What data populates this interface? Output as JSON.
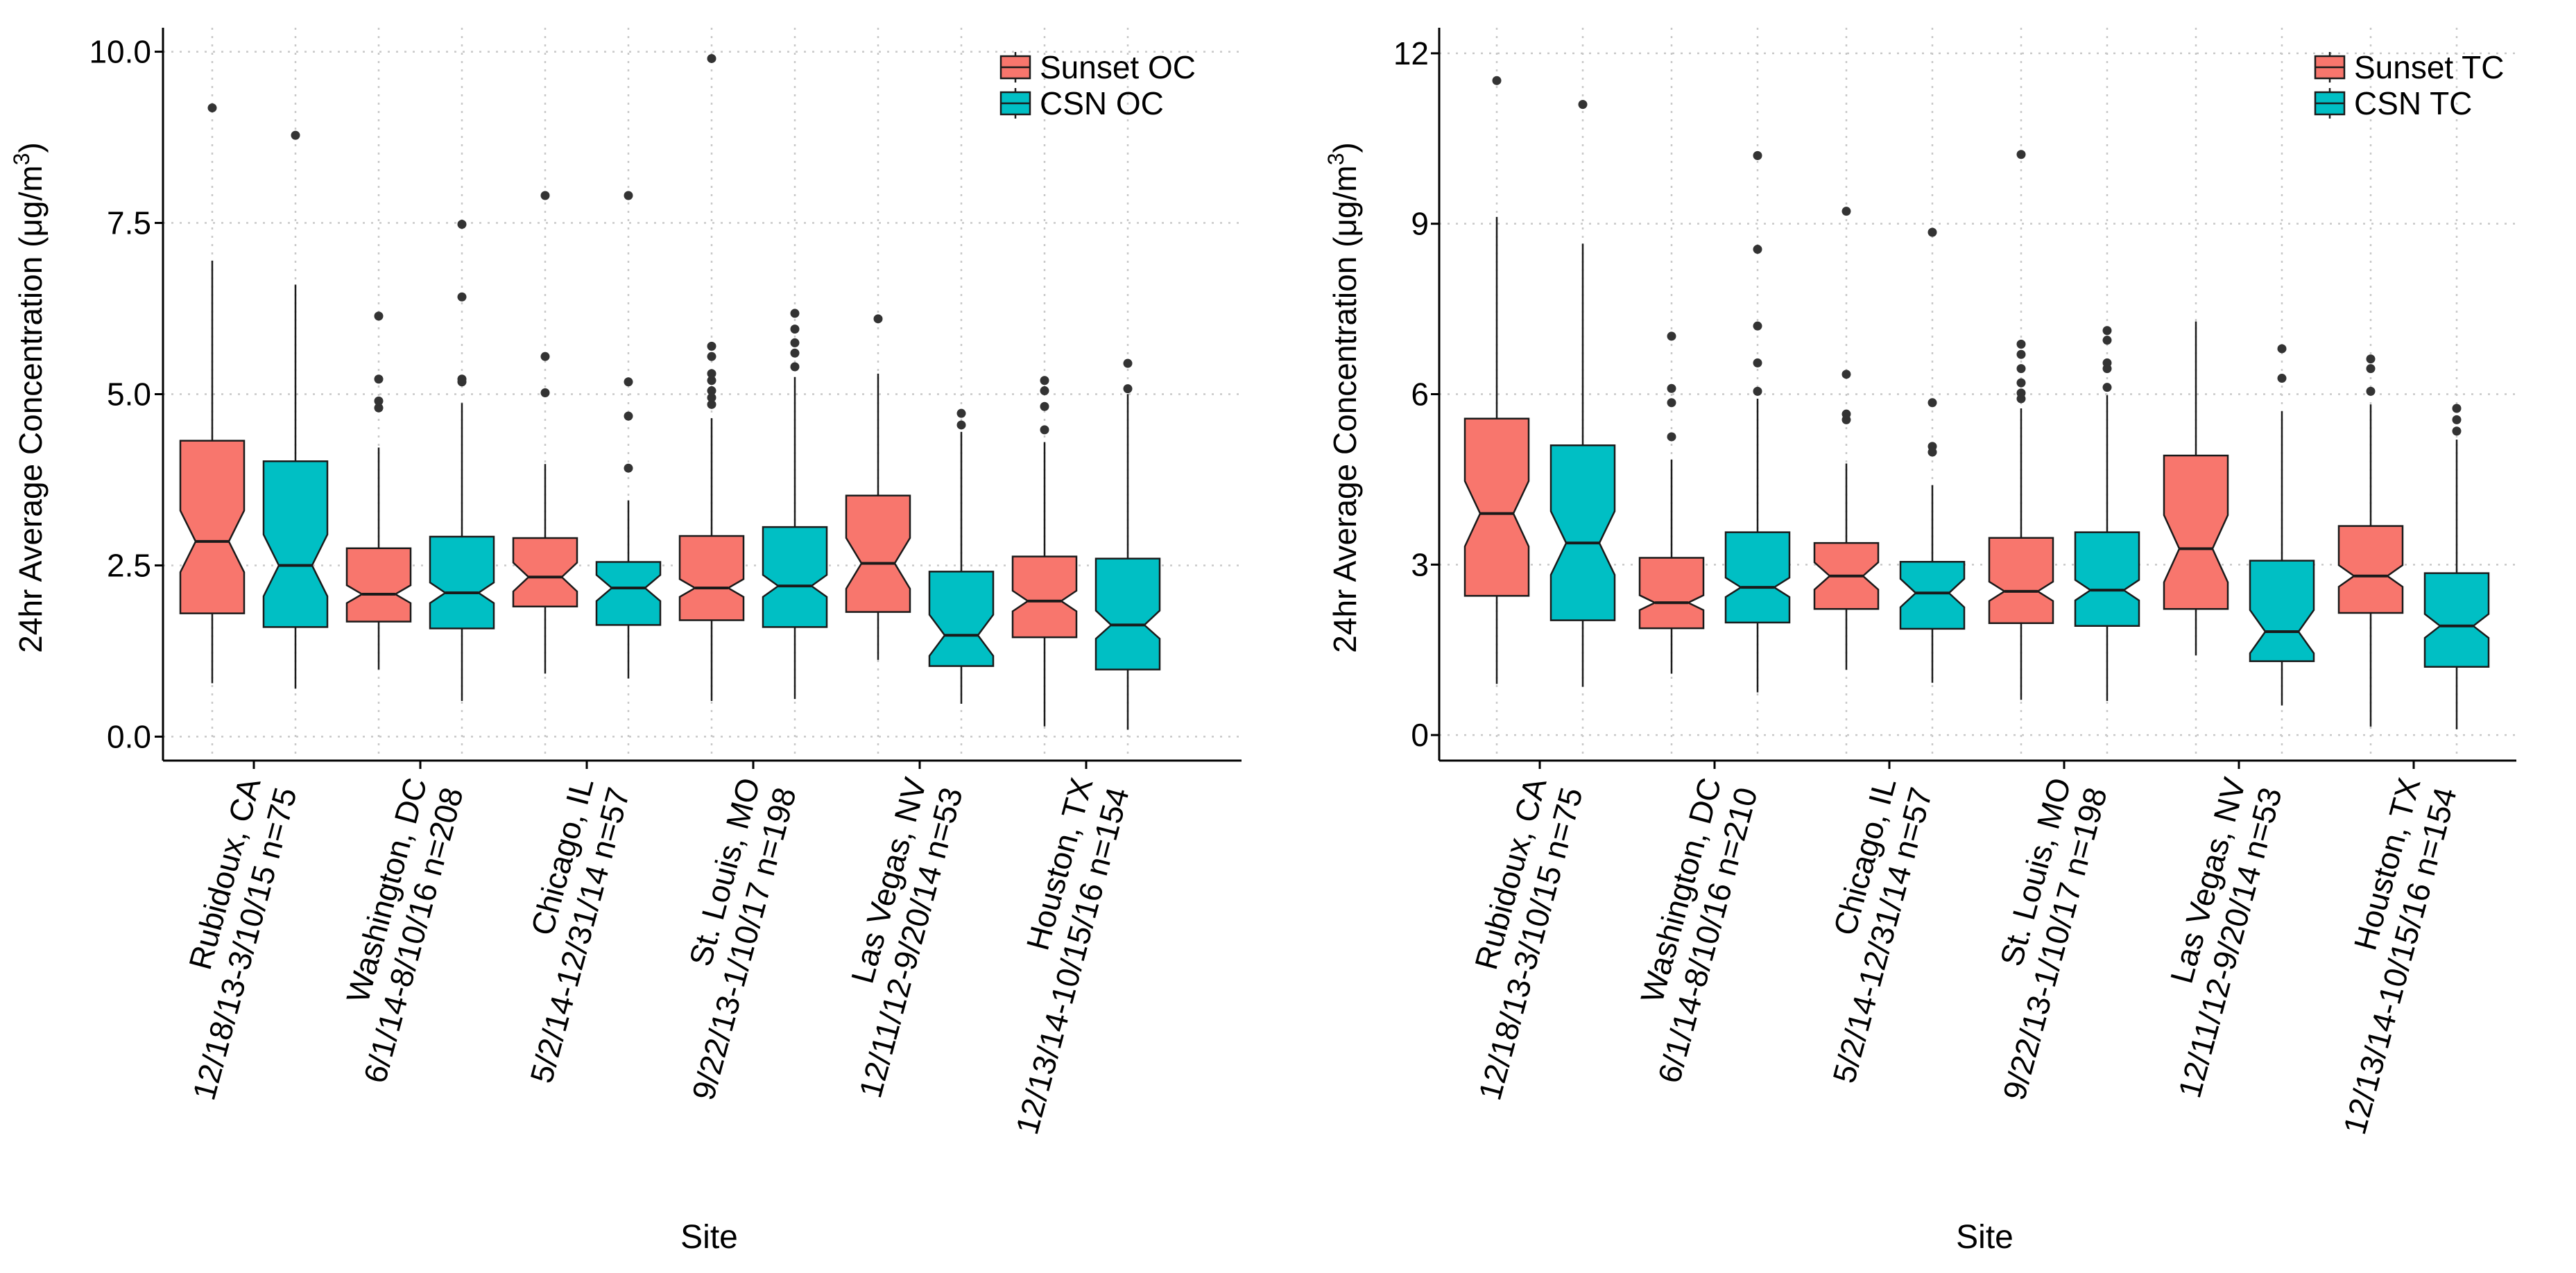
{
  "chart_data": [
    {
      "type": "boxplot",
      "notched": true,
      "ylabel_main": "24hr Average Concentration (",
      "ylabel_unit_mu": "μ",
      "ylabel_unit_rest": "g/m",
      "ylabel_sup": "3",
      "ylabel_close": ")",
      "xlabel": "Site",
      "ylim": [
        -0.35,
        10.35
      ],
      "yticks": [
        0.0,
        2.5,
        5.0,
        7.5,
        10.0
      ],
      "ytick_labels": [
        "0.0",
        "2.5",
        "5.0",
        "7.5",
        "10.0"
      ],
      "grid": true,
      "legend_position": "top-right",
      "series": [
        {
          "name": "Sunset OC",
          "color": "#F8766D"
        },
        {
          "name": "CSN OC",
          "color": "#00BFC4"
        }
      ],
      "categories": [
        {
          "line1": "Rubidoux, CA",
          "line2": "12/18/13-3/10/15 n=75"
        },
        {
          "line1": "Washington, DC",
          "line2": "6/1/14-8/10/16 n=208"
        },
        {
          "line1": "Chicago, IL",
          "line2": "5/2/14-12/31/14 n=57"
        },
        {
          "line1": "St. Louis, MO",
          "line2": "9/22/13-1/10/17 n=198"
        },
        {
          "line1": "Las Vegas, NV",
          "line2": "12/11/12-9/20/14 n=53"
        },
        {
          "line1": "Houston, TX",
          "line2": "12/13/14-10/15/16 n=154"
        }
      ],
      "boxes": [
        [
          {
            "q1": 1.8,
            "med": 2.85,
            "q3": 4.32,
            "wlo": 0.78,
            "whi": 6.95,
            "nlo": 2.4,
            "nhi": 3.3,
            "out": [
              9.18
            ]
          },
          {
            "q1": 1.6,
            "med": 2.5,
            "q3": 4.02,
            "wlo": 0.7,
            "whi": 6.6,
            "nlo": 2.05,
            "nhi": 2.95,
            "out": [
              8.78
            ]
          }
        ],
        [
          {
            "q1": 1.68,
            "med": 2.08,
            "q3": 2.75,
            "wlo": 0.98,
            "whi": 4.22,
            "nlo": 1.95,
            "nhi": 2.21,
            "out": [
              4.8,
              4.9,
              5.22,
              6.14
            ]
          },
          {
            "q1": 1.58,
            "med": 2.1,
            "q3": 2.92,
            "wlo": 0.52,
            "whi": 4.87,
            "nlo": 1.95,
            "nhi": 2.25,
            "out": [
              5.18,
              5.22,
              6.42,
              7.48
            ]
          }
        ],
        [
          {
            "q1": 1.9,
            "med": 2.33,
            "q3": 2.9,
            "wlo": 0.92,
            "whi": 3.98,
            "nlo": 2.12,
            "nhi": 2.54,
            "out": [
              5.02,
              5.55,
              7.9
            ]
          },
          {
            "q1": 1.63,
            "med": 2.17,
            "q3": 2.55,
            "wlo": 0.85,
            "whi": 3.45,
            "nlo": 1.98,
            "nhi": 2.36,
            "out": [
              3.92,
              4.68,
              5.18,
              7.9
            ]
          }
        ],
        [
          {
            "q1": 1.7,
            "med": 2.17,
            "q3": 2.93,
            "wlo": 0.52,
            "whi": 4.65,
            "nlo": 2.04,
            "nhi": 2.3,
            "out": [
              4.85,
              4.95,
              5.05,
              5.2,
              5.3,
              5.55,
              5.7,
              9.9
            ]
          },
          {
            "q1": 1.6,
            "med": 2.2,
            "q3": 3.06,
            "wlo": 0.55,
            "whi": 5.25,
            "nlo": 2.04,
            "nhi": 2.36,
            "out": [
              5.4,
              5.6,
              5.75,
              5.95,
              6.18
            ]
          }
        ],
        [
          {
            "q1": 1.82,
            "med": 2.53,
            "q3": 3.52,
            "wlo": 1.12,
            "whi": 5.3,
            "nlo": 2.16,
            "nhi": 2.9,
            "out": [
              6.1
            ]
          },
          {
            "q1": 1.03,
            "med": 1.48,
            "q3": 2.41,
            "wlo": 0.48,
            "whi": 4.45,
            "nlo": 1.18,
            "nhi": 1.78,
            "out": [
              4.55,
              4.72
            ]
          }
        ],
        [
          {
            "q1": 1.45,
            "med": 1.98,
            "q3": 2.63,
            "wlo": 0.15,
            "whi": 4.3,
            "nlo": 1.83,
            "nhi": 2.13,
            "out": [
              4.48,
              4.82,
              5.05,
              5.2
            ]
          },
          {
            "q1": 0.98,
            "med": 1.63,
            "q3": 2.6,
            "wlo": 0.1,
            "whi": 5.0,
            "nlo": 1.43,
            "nhi": 1.84,
            "out": [
              5.08,
              5.45
            ]
          }
        ]
      ]
    },
    {
      "type": "boxplot",
      "notched": true,
      "ylabel_main": "24hr Average Concentration (",
      "ylabel_unit_mu": "μ",
      "ylabel_unit_rest": "g/m",
      "ylabel_sup": "3",
      "ylabel_close": ")",
      "xlabel": "Site",
      "ylim": [
        -0.45,
        12.45
      ],
      "yticks": [
        0,
        3,
        6,
        9,
        12
      ],
      "ytick_labels": [
        "0",
        "3",
        "6",
        "9",
        "12"
      ],
      "grid": true,
      "legend_position": "top-right",
      "series": [
        {
          "name": "Sunset TC",
          "color": "#F8766D"
        },
        {
          "name": "CSN TC",
          "color": "#00BFC4"
        }
      ],
      "categories": [
        {
          "line1": "Rubidoux, CA",
          "line2": "12/18/13-3/10/15 n=75"
        },
        {
          "line1": "Washington, DC",
          "line2": "6/1/14-8/10/16 n=210"
        },
        {
          "line1": "Chicago, IL",
          "line2": "5/2/14-12/31/14 n=57"
        },
        {
          "line1": "St. Louis, MO",
          "line2": "9/22/13-1/10/17 n=198"
        },
        {
          "line1": "Las Vegas, NV",
          "line2": "12/11/12-9/20/14 n=53"
        },
        {
          "line1": "Houston, TX",
          "line2": "12/13/14-10/15/16 n=154"
        }
      ],
      "boxes": [
        [
          {
            "q1": 2.45,
            "med": 3.9,
            "q3": 5.57,
            "wlo": 0.9,
            "whi": 9.12,
            "nlo": 3.32,
            "nhi": 4.47,
            "out": [
              11.52
            ]
          },
          {
            "q1": 2.02,
            "med": 3.38,
            "q3": 5.1,
            "wlo": 0.85,
            "whi": 8.65,
            "nlo": 2.82,
            "nhi": 3.94,
            "out": [
              11.1
            ]
          }
        ],
        [
          {
            "q1": 1.88,
            "med": 2.33,
            "q3": 3.12,
            "wlo": 1.08,
            "whi": 4.85,
            "nlo": 2.2,
            "nhi": 2.46,
            "out": [
              5.25,
              5.85,
              6.1,
              7.02
            ]
          },
          {
            "q1": 1.98,
            "med": 2.6,
            "q3": 3.57,
            "wlo": 0.75,
            "whi": 5.92,
            "nlo": 2.43,
            "nhi": 2.77,
            "out": [
              6.05,
              6.55,
              7.2,
              8.55,
              10.2
            ]
          }
        ],
        [
          {
            "q1": 2.22,
            "med": 2.8,
            "q3": 3.38,
            "wlo": 1.15,
            "whi": 4.78,
            "nlo": 2.56,
            "nhi": 3.04,
            "out": [
              5.55,
              5.65,
              6.35,
              9.22
            ]
          },
          {
            "q1": 1.87,
            "med": 2.5,
            "q3": 3.05,
            "wlo": 0.92,
            "whi": 4.4,
            "nlo": 2.25,
            "nhi": 2.75,
            "out": [
              4.98,
              5.08,
              5.85,
              8.85
            ]
          }
        ],
        [
          {
            "q1": 1.97,
            "med": 2.53,
            "q3": 3.47,
            "wlo": 0.62,
            "whi": 5.75,
            "nlo": 2.36,
            "nhi": 2.7,
            "out": [
              5.92,
              6.02,
              6.2,
              6.45,
              6.7,
              6.88,
              10.22
            ]
          },
          {
            "q1": 1.92,
            "med": 2.55,
            "q3": 3.57,
            "wlo": 0.6,
            "whi": 5.98,
            "nlo": 2.37,
            "nhi": 2.73,
            "out": [
              6.12,
              6.45,
              6.55,
              6.95,
              7.12
            ]
          }
        ],
        [
          {
            "q1": 2.22,
            "med": 3.28,
            "q3": 4.92,
            "wlo": 1.4,
            "whi": 7.28,
            "nlo": 2.69,
            "nhi": 3.87,
            "out": []
          },
          {
            "q1": 1.3,
            "med": 1.82,
            "q3": 3.07,
            "wlo": 0.52,
            "whi": 5.7,
            "nlo": 1.44,
            "nhi": 2.2,
            "out": [
              6.28,
              6.8
            ]
          }
        ],
        [
          {
            "q1": 2.15,
            "med": 2.8,
            "q3": 3.68,
            "wlo": 0.15,
            "whi": 5.82,
            "nlo": 2.61,
            "nhi": 2.99,
            "out": [
              6.05,
              6.45,
              6.62
            ]
          },
          {
            "q1": 1.2,
            "med": 1.92,
            "q3": 2.85,
            "wlo": 0.1,
            "whi": 5.2,
            "nlo": 1.71,
            "nhi": 2.13,
            "out": [
              5.35,
              5.55,
              5.75
            ]
          }
        ]
      ]
    }
  ]
}
